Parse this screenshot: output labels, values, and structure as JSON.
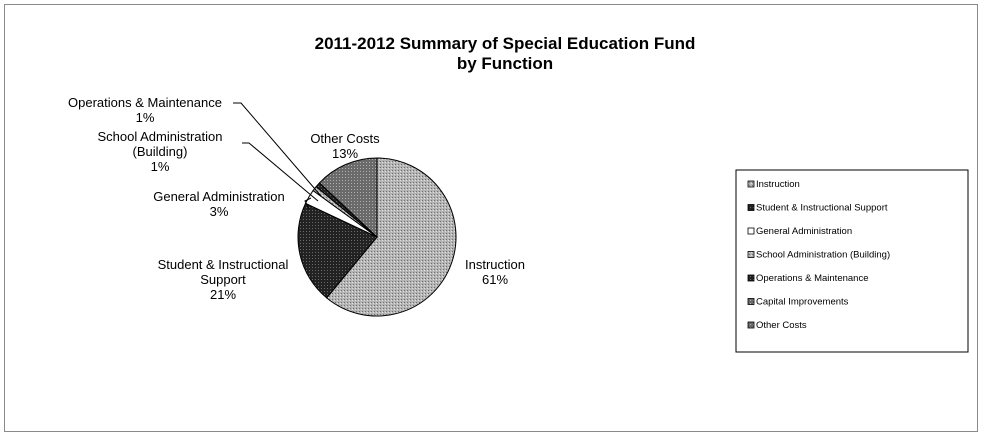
{
  "chart_data": {
    "type": "pie",
    "title": "2011-2012 Summary of Special Education Fund",
    "subtitle": "by Function",
    "slices": [
      {
        "name": "Instruction",
        "value": 61,
        "label": "61%",
        "color": "#a9a9a9",
        "pattern": "dots-light"
      },
      {
        "name": "Student & Instructional Support",
        "value": 21,
        "label": "21%",
        "color": "#2b2b2b",
        "pattern": "dots-dark"
      },
      {
        "name": "General Administration",
        "value": 3,
        "label": "3%",
        "color": "#ffffff",
        "pattern": "none"
      },
      {
        "name": "School Administration (Building)",
        "value": 1,
        "label": "1%",
        "color": "#d8d8d8",
        "pattern": "dots-light"
      },
      {
        "name": "Operations & Maintenance",
        "value": 1,
        "label": "1%",
        "color": "#3a3a3a",
        "pattern": "dots-dark"
      },
      {
        "name": "Capital Improvements",
        "value": 0,
        "label": "",
        "color": "#8c8c8c",
        "pattern": "dots-mid"
      },
      {
        "name": "Other Costs",
        "value": 13,
        "label": "13%",
        "color": "#5a5a5a",
        "pattern": "dots-mid"
      }
    ],
    "callouts": [
      {
        "lines": [
          "Instruction",
          "61%"
        ]
      },
      {
        "lines": [
          "Student & Instructional",
          "Support",
          "21%"
        ]
      },
      {
        "lines": [
          "General Administration",
          "3%"
        ]
      },
      {
        "lines": [
          "School Administration",
          "(Building)",
          "1%"
        ]
      },
      {
        "lines": [
          "Operations & Maintenance",
          "1%"
        ]
      },
      {
        "lines": [
          "Other Costs",
          "13%"
        ]
      }
    ],
    "legend": {
      "placement": "right",
      "entries": [
        "Instruction",
        "Student & Instructional Support",
        "General Administration",
        "School Administration (Building)",
        "Operations & Maintenance",
        "Capital Improvements",
        "Other Costs"
      ]
    }
  }
}
